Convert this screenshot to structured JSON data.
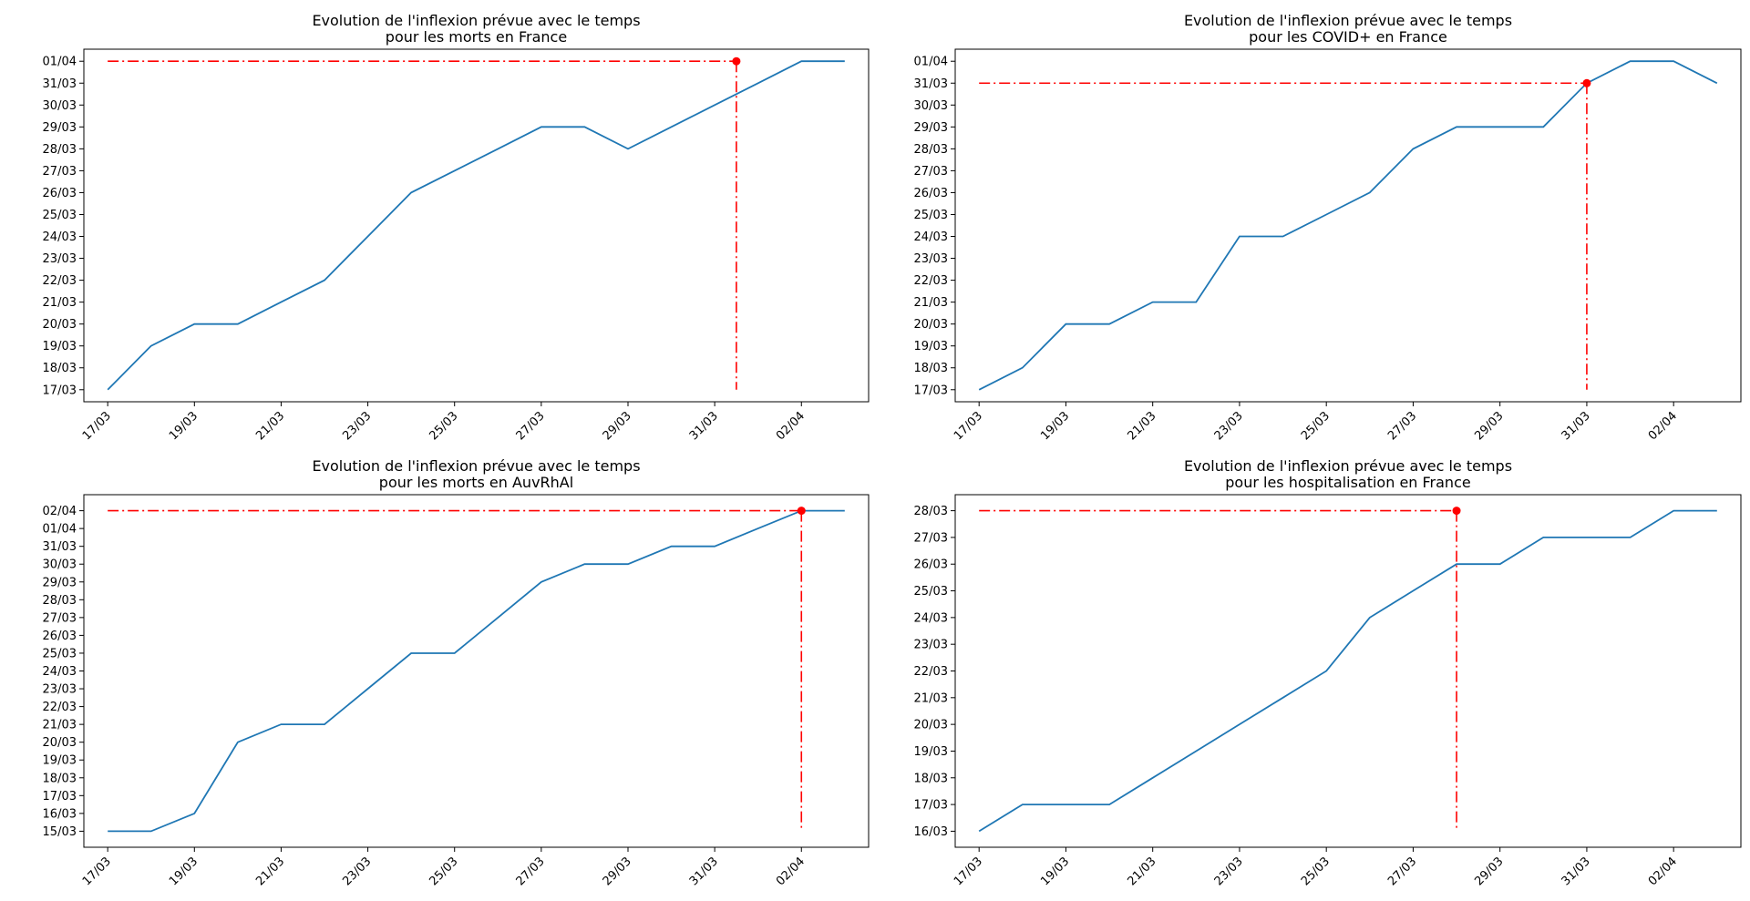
{
  "colors": {
    "line": "#1f77b4",
    "marker": "#ff0000",
    "axes": "#000000",
    "background": "#ffffff"
  },
  "chart_data": [
    {
      "type": "line",
      "title": "Evolution de l'inflexion prévue avec le temps\npour les morts en France",
      "x": [
        "17/03",
        "18/03",
        "19/03",
        "20/03",
        "21/03",
        "22/03",
        "23/03",
        "24/03",
        "25/03",
        "26/03",
        "27/03",
        "28/03",
        "29/03",
        "30/03",
        "31/03",
        "01/04",
        "02/04",
        "03/04"
      ],
      "y": [
        "17/03",
        "19/03",
        "20/03",
        "20/03",
        "21/03",
        "22/03",
        "24/03",
        "26/03",
        "27/03",
        "28/03",
        "29/03",
        "29/03",
        "28/03",
        "29/03",
        "30/03",
        "31/03",
        "01/04",
        "01/04"
      ],
      "xticks": [
        "17/03",
        "19/03",
        "21/03",
        "23/03",
        "25/03",
        "27/03",
        "29/03",
        "31/03",
        "02/04"
      ],
      "yticks": [
        "17/03",
        "18/03",
        "19/03",
        "20/03",
        "21/03",
        "22/03",
        "23/03",
        "24/03",
        "25/03",
        "26/03",
        "27/03",
        "28/03",
        "29/03",
        "30/03",
        "31/03",
        "01/04"
      ],
      "inflexion": {
        "x": "01/04",
        "x_offset_days": -0.5,
        "y": "01/04"
      },
      "grid": false
    },
    {
      "type": "line",
      "title": "Evolution de l'inflexion prévue avec le temps\npour les COVID+ en France",
      "x": [
        "17/03",
        "18/03",
        "19/03",
        "20/03",
        "21/03",
        "22/03",
        "23/03",
        "24/03",
        "25/03",
        "26/03",
        "27/03",
        "28/03",
        "29/03",
        "30/03",
        "31/03",
        "01/04",
        "02/04",
        "03/04"
      ],
      "y": [
        "17/03",
        "18/03",
        "20/03",
        "20/03",
        "21/03",
        "21/03",
        "24/03",
        "24/03",
        "25/03",
        "26/03",
        "28/03",
        "29/03",
        "29/03",
        "29/03",
        "31/03",
        "01/04",
        "01/04",
        "31/03"
      ],
      "xticks": [
        "17/03",
        "19/03",
        "21/03",
        "23/03",
        "25/03",
        "27/03",
        "29/03",
        "31/03",
        "02/04"
      ],
      "yticks": [
        "17/03",
        "18/03",
        "19/03",
        "20/03",
        "21/03",
        "22/03",
        "23/03",
        "24/03",
        "25/03",
        "26/03",
        "27/03",
        "28/03",
        "29/03",
        "30/03",
        "31/03",
        "01/04"
      ],
      "inflexion": {
        "x": "31/03",
        "x_offset_days": 0,
        "y": "31/03"
      },
      "grid": false
    },
    {
      "type": "line",
      "title": "Evolution de l'inflexion prévue avec le temps\npour les morts en AuvRhAl",
      "x": [
        "17/03",
        "18/03",
        "19/03",
        "20/03",
        "21/03",
        "22/03",
        "23/03",
        "24/03",
        "25/03",
        "26/03",
        "27/03",
        "28/03",
        "29/03",
        "30/03",
        "31/03",
        "01/04",
        "02/04",
        "03/04"
      ],
      "y": [
        "15/03",
        "15/03",
        "16/03",
        "20/03",
        "21/03",
        "21/03",
        "23/03",
        "25/03",
        "25/03",
        "27/03",
        "29/03",
        "30/03",
        "30/03",
        "31/03",
        "31/03",
        "01/04",
        "02/04",
        "02/04"
      ],
      "xticks": [
        "17/03",
        "19/03",
        "21/03",
        "23/03",
        "25/03",
        "27/03",
        "29/03",
        "31/03",
        "02/04"
      ],
      "yticks": [
        "15/03",
        "16/03",
        "17/03",
        "18/03",
        "19/03",
        "20/03",
        "21/03",
        "22/03",
        "23/03",
        "24/03",
        "25/03",
        "26/03",
        "27/03",
        "28/03",
        "29/03",
        "30/03",
        "31/03",
        "01/04",
        "02/04"
      ],
      "inflexion": {
        "x": "02/04",
        "x_offset_days": 0,
        "y": "02/04"
      },
      "grid": false
    },
    {
      "type": "line",
      "title": "Evolution de l'inflexion prévue avec le temps\npour les hospitalisation en France",
      "x": [
        "17/03",
        "18/03",
        "19/03",
        "20/03",
        "21/03",
        "22/03",
        "23/03",
        "24/03",
        "25/03",
        "26/03",
        "27/03",
        "28/03",
        "29/03",
        "30/03",
        "31/03",
        "01/04",
        "02/04",
        "03/04"
      ],
      "y": [
        "16/03",
        "17/03",
        "17/03",
        "17/03",
        "18/03",
        "19/03",
        "20/03",
        "21/03",
        "22/03",
        "24/03",
        "25/03",
        "26/03",
        "26/03",
        "27/03",
        "27/03",
        "27/03",
        "28/03",
        "28/03"
      ],
      "xticks": [
        "17/03",
        "19/03",
        "21/03",
        "23/03",
        "25/03",
        "27/03",
        "29/03",
        "31/03",
        "02/04"
      ],
      "yticks": [
        "16/03",
        "17/03",
        "18/03",
        "19/03",
        "20/03",
        "21/03",
        "22/03",
        "23/03",
        "24/03",
        "25/03",
        "26/03",
        "27/03",
        "28/03"
      ],
      "inflexion": {
        "x": "28/03",
        "x_offset_days": 0,
        "y": "28/03"
      },
      "grid": false
    }
  ]
}
